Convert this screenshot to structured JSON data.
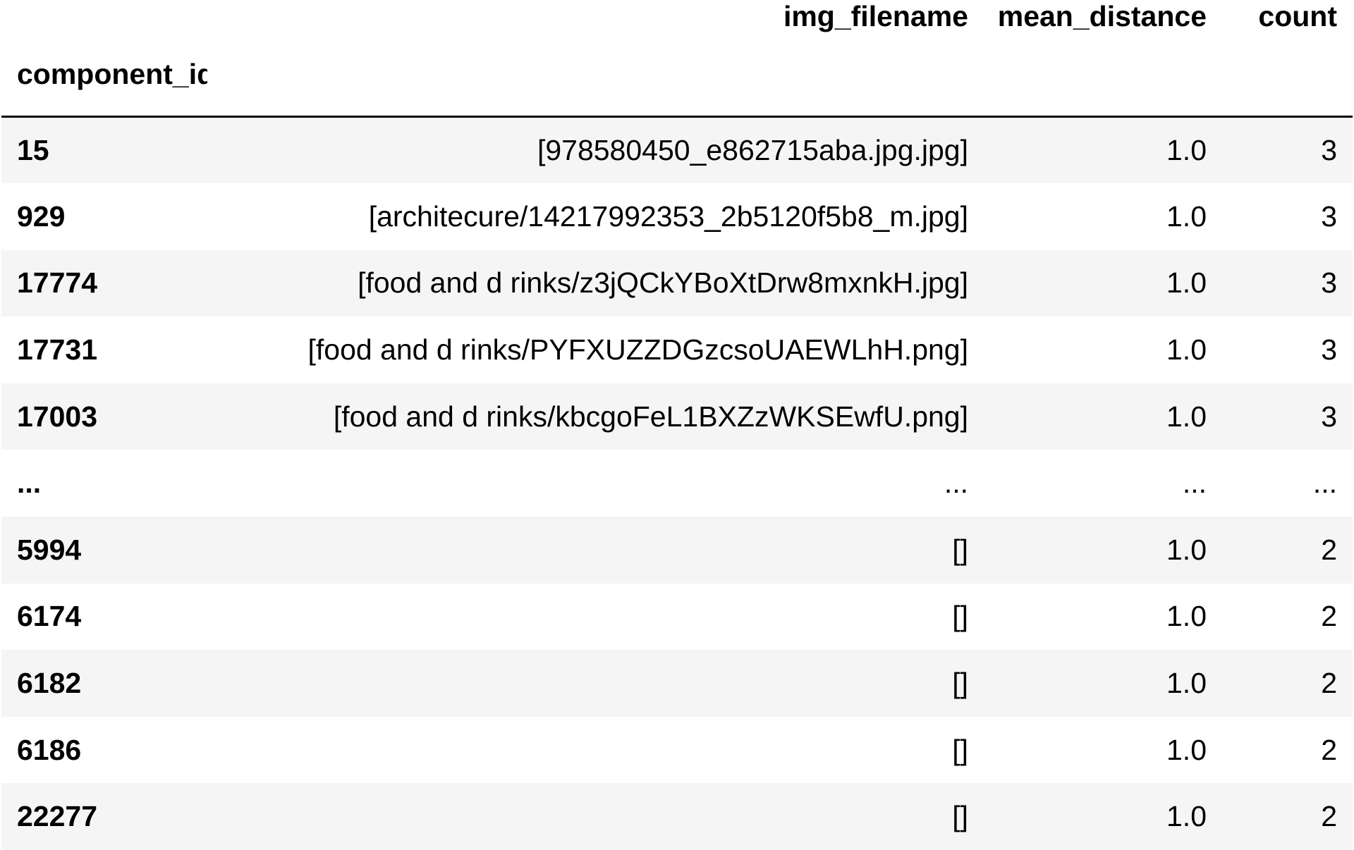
{
  "table": {
    "index_name": "component_id",
    "columns": [
      "img_filename",
      "mean_distance",
      "count"
    ],
    "rows": [
      {
        "id": "15",
        "img_filename": "[978580450_e862715aba.jpg.jpg]",
        "mean_distance": "1.0",
        "count": "3"
      },
      {
        "id": "929",
        "img_filename": "[architecure/14217992353_2b5120f5b8_m.jpg]",
        "mean_distance": "1.0",
        "count": "3"
      },
      {
        "id": "17774",
        "img_filename": "[food and d rinks/z3jQCkYBoXtDrw8mxnkH.jpg]",
        "mean_distance": "1.0",
        "count": "3"
      },
      {
        "id": "17731",
        "img_filename": "[food and d rinks/PYFXUZZDGzcsoUAEWLhH.png]",
        "mean_distance": "1.0",
        "count": "3"
      },
      {
        "id": "17003",
        "img_filename": "[food and d rinks/kbcgoFeL1BXZzWKSEwfU.png]",
        "mean_distance": "1.0",
        "count": "3"
      },
      {
        "id": "...",
        "img_filename": "...",
        "mean_distance": "...",
        "count": "..."
      },
      {
        "id": "5994",
        "img_filename": "[]",
        "mean_distance": "1.0",
        "count": "2"
      },
      {
        "id": "6174",
        "img_filename": "[]",
        "mean_distance": "1.0",
        "count": "2"
      },
      {
        "id": "6182",
        "img_filename": "[]",
        "mean_distance": "1.0",
        "count": "2"
      },
      {
        "id": "6186",
        "img_filename": "[]",
        "mean_distance": "1.0",
        "count": "2"
      },
      {
        "id": "22277",
        "img_filename": "[]",
        "mean_distance": "1.0",
        "count": "2"
      }
    ]
  }
}
